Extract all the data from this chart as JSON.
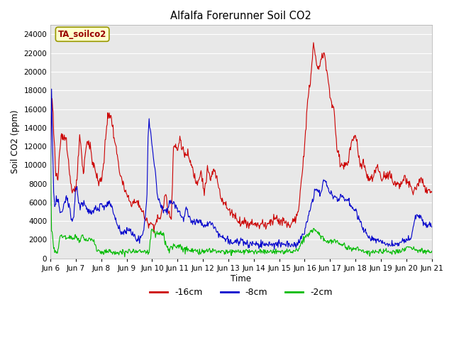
{
  "title": "Alfalfa Forerunner Soil CO2",
  "ylabel": "Soil CO2 (ppm)",
  "xlabel": "Time",
  "annotation": "TA_soilco2",
  "ylim": [
    0,
    25000
  ],
  "yticks": [
    0,
    2000,
    4000,
    6000,
    8000,
    10000,
    12000,
    14000,
    16000,
    18000,
    20000,
    22000,
    24000
  ],
  "line_colors": {
    "r16": "#cc0000",
    "r8": "#0000cc",
    "r2": "#00bb00"
  },
  "line_labels": [
    "-16cm",
    "-8cm",
    "-2cm"
  ],
  "bg_color": "#e8e8e8",
  "n_points": 720,
  "xtick_labels": [
    "Jun 6",
    "Jun 7",
    "Jun 8",
    "Jun 9",
    "Jun 10",
    "Jun 11",
    "Jun 12",
    "Jun 13",
    "Jun 14",
    "Jun 15",
    "Jun 16",
    "Jun 17",
    "Jun 18",
    "Jun 19",
    "Jun 20",
    "Jun 21"
  ],
  "xtick_positions": [
    0,
    48,
    96,
    144,
    192,
    240,
    288,
    336,
    384,
    432,
    480,
    528,
    576,
    624,
    672,
    720
  ]
}
